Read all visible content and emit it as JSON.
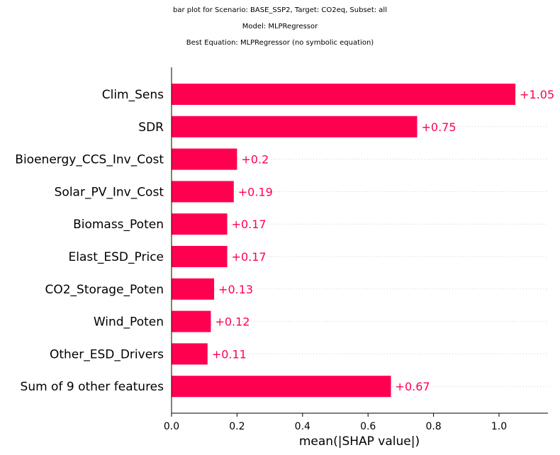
{
  "titles": {
    "line1": "bar plot for Scenario: BASE_SSP2, Target: CO2eq, Subset: all",
    "line2": "Model: MLPRegressor",
    "line3": "Best Equation: MLPRegressor (no symbolic equation)"
  },
  "chart_data": {
    "type": "bar",
    "orientation": "horizontal",
    "categories": [
      "Clim_Sens",
      "SDR",
      "Bioenergy_CCS_Inv_Cost",
      "Solar_PV_Inv_Cost",
      "Biomass_Poten",
      "Elast_ESD_Price",
      "CO2_Storage_Poten",
      "Wind_Poten",
      "Other_ESD_Drivers",
      "Sum of 9 other features"
    ],
    "values": [
      1.05,
      0.75,
      0.2,
      0.19,
      0.17,
      0.17,
      0.13,
      0.12,
      0.11,
      0.67
    ],
    "value_labels": [
      "+1.05",
      "+0.75",
      "+0.2",
      "+0.19",
      "+0.17",
      "+0.17",
      "+0.13",
      "+0.12",
      "+0.11",
      "+0.67"
    ],
    "xlabel": "mean(|SHAP value|)",
    "ylabel": "",
    "xlim": [
      0,
      1.15
    ],
    "xticks": [
      0.0,
      0.2,
      0.4,
      0.6,
      0.8,
      1.0
    ],
    "xtick_labels": [
      "0.0",
      "0.2",
      "0.4",
      "0.6",
      "0.8",
      "1.0"
    ],
    "bar_color": "#ff0051",
    "label_color": "#ff0051",
    "grid": "dotted horizontal guide lines per row"
  }
}
